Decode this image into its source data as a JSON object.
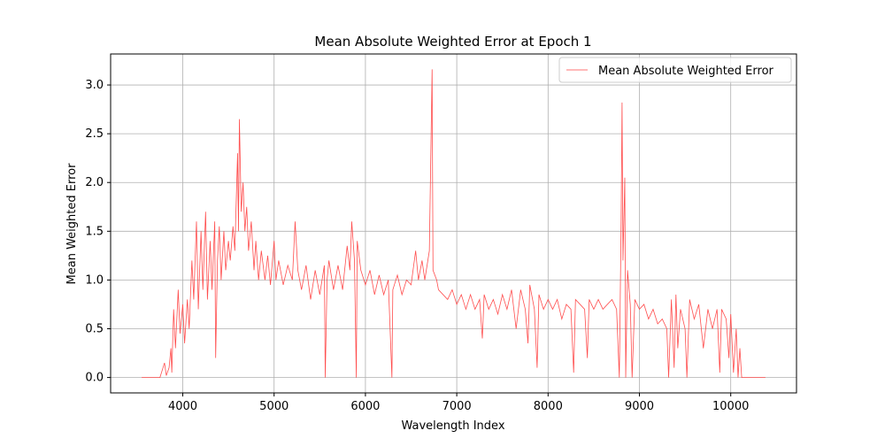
{
  "chart_data": {
    "type": "line",
    "title": "Mean Absolute Weighted Error at Epoch 1",
    "x_label": "Wavelength Index",
    "y_label": "Mean Weighted Error",
    "x": [
      3550,
      3650,
      3750,
      3800,
      3820,
      3850,
      3870,
      3880,
      3900,
      3920,
      3950,
      3970,
      4000,
      4020,
      4050,
      4070,
      4100,
      4120,
      4150,
      4170,
      4200,
      4220,
      4250,
      4270,
      4300,
      4320,
      4350,
      4360,
      4380,
      4400,
      4420,
      4450,
      4470,
      4500,
      4520,
      4550,
      4570,
      4600,
      4610,
      4620,
      4640,
      4660,
      4680,
      4700,
      4720,
      4750,
      4780,
      4800,
      4830,
      4860,
      4900,
      4930,
      4960,
      5000,
      5020,
      5050,
      5100,
      5150,
      5200,
      5230,
      5260,
      5300,
      5350,
      5400,
      5450,
      5500,
      5550,
      5560,
      5580,
      5600,
      5650,
      5700,
      5750,
      5800,
      5830,
      5850,
      5880,
      5900,
      5910,
      5950,
      6000,
      6050,
      6100,
      6150,
      6200,
      6250,
      6290,
      6300,
      6350,
      6400,
      6450,
      6500,
      6550,
      6580,
      6620,
      6650,
      6700,
      6730,
      6740,
      6780,
      6800,
      6850,
      6900,
      6950,
      7000,
      7050,
      7100,
      7150,
      7200,
      7250,
      7280,
      7300,
      7350,
      7400,
      7450,
      7500,
      7550,
      7600,
      7650,
      7700,
      7750,
      7780,
      7800,
      7850,
      7880,
      7900,
      7950,
      8000,
      8050,
      8100,
      8150,
      8200,
      8250,
      8280,
      8300,
      8350,
      8400,
      8430,
      8450,
      8500,
      8550,
      8600,
      8650,
      8700,
      8750,
      8780,
      8800,
      8810,
      8820,
      8840,
      8850,
      8870,
      8900,
      8920,
      8950,
      9000,
      9050,
      9100,
      9150,
      9200,
      9250,
      9300,
      9320,
      9350,
      9380,
      9400,
      9420,
      9450,
      9500,
      9520,
      9550,
      9600,
      9650,
      9700,
      9750,
      9800,
      9850,
      9880,
      9900,
      9950,
      9980,
      10000,
      10030,
      10060,
      10080,
      10100,
      10120,
      10200,
      10380
    ],
    "series": [
      {
        "name": "Mean Absolute Weighted Error",
        "color": "#ff4444",
        "values": [
          0,
          0,
          0,
          0.15,
          0.02,
          0.1,
          0.3,
          0.05,
          0.7,
          0.3,
          0.9,
          0.45,
          0.75,
          0.35,
          0.8,
          0.5,
          1.2,
          0.8,
          1.6,
          0.7,
          1.5,
          0.9,
          1.7,
          0.8,
          1.4,
          0.9,
          1.6,
          0.2,
          1.2,
          1.55,
          1.0,
          1.5,
          1.1,
          1.4,
          1.2,
          1.55,
          1.3,
          2.3,
          1.5,
          2.65,
          1.7,
          2.0,
          1.5,
          1.75,
          1.3,
          1.6,
          1.1,
          1.4,
          1.0,
          1.3,
          1.0,
          1.25,
          0.95,
          1.4,
          1.0,
          1.2,
          0.95,
          1.15,
          1.0,
          1.6,
          1.1,
          0.9,
          1.15,
          0.8,
          1.1,
          0.85,
          1.15,
          0.0,
          1.0,
          1.2,
          0.9,
          1.15,
          0.9,
          1.35,
          1.1,
          1.6,
          1.2,
          0.0,
          1.4,
          1.1,
          0.95,
          1.1,
          0.85,
          1.05,
          0.85,
          1.0,
          0.0,
          0.9,
          1.05,
          0.85,
          1.0,
          0.95,
          1.3,
          1.0,
          1.2,
          1.0,
          1.3,
          3.16,
          1.1,
          1.0,
          0.9,
          0.85,
          0.8,
          0.9,
          0.75,
          0.85,
          0.7,
          0.85,
          0.7,
          0.8,
          0.4,
          0.85,
          0.7,
          0.8,
          0.65,
          0.85,
          0.7,
          0.9,
          0.5,
          0.9,
          0.7,
          0.35,
          0.95,
          0.7,
          0.1,
          0.85,
          0.7,
          0.8,
          0.7,
          0.8,
          0.6,
          0.75,
          0.7,
          0.05,
          0.8,
          0.75,
          0.7,
          0.2,
          0.8,
          0.7,
          0.8,
          0.7,
          0.75,
          0.8,
          0.7,
          0.0,
          1.6,
          2.82,
          1.2,
          2.05,
          0.0,
          1.1,
          0.75,
          0.0,
          0.8,
          0.7,
          0.75,
          0.6,
          0.7,
          0.55,
          0.6,
          0.5,
          0.0,
          0.8,
          0.1,
          0.85,
          0.3,
          0.7,
          0.5,
          0.0,
          0.8,
          0.6,
          0.75,
          0.3,
          0.7,
          0.5,
          0.7,
          0.05,
          0.7,
          0.6,
          0.2,
          0.65,
          0.05,
          0.5,
          0.0,
          0.3,
          0.0,
          0.0,
          0.0
        ]
      }
    ],
    "xlim": [
      3210,
      10720
    ],
    "ylim": [
      -0.158,
      3.318
    ],
    "xticks": [
      4000,
      5000,
      6000,
      7000,
      8000,
      9000,
      10000
    ],
    "yticks": [
      {
        "value": 0,
        "label": "0.0"
      },
      0.5,
      {
        "value": 1,
        "label": "1.0"
      },
      1.5,
      {
        "value": 2,
        "label": "2.0"
      },
      2.5,
      {
        "value": 3,
        "label": "3.0"
      }
    ],
    "grid": true,
    "legend": "upper right"
  }
}
